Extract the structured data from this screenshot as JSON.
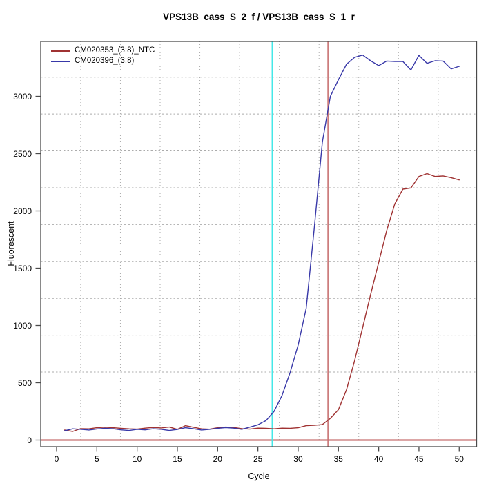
{
  "title": "VPS13B_cass_S_2_f / VPS13B_cass_S_1_r",
  "axes": {
    "xlabel": "Cycle",
    "ylabel": "Fluorescent",
    "x_ticks": [
      0,
      5,
      10,
      15,
      20,
      25,
      30,
      35,
      40,
      45,
      50
    ],
    "y_ticks": [
      0,
      500,
      1000,
      1500,
      2000,
      2500,
      3000
    ]
  },
  "legend": {
    "items": [
      {
        "label": "CM020353_(3:8)_NTC",
        "color": "#A03232"
      },
      {
        "label": "CM020396_(3:8)",
        "color": "#3838A8"
      }
    ]
  },
  "colors": {
    "ntc_series": "#A03232",
    "sample_series": "#3838A8",
    "cyan_marker": "#45E8E8",
    "red_marker": "#C87272",
    "grid": "#ABABAB",
    "box": "#4A4A4A"
  },
  "chart_data": {
    "type": "line",
    "title": "VPS13B_cass_S_2_f / VPS13B_cass_S_1_r",
    "xlabel": "Cycle",
    "ylabel": "Fluorescent",
    "xlim": [
      -2,
      52
    ],
    "ylim": [
      -60,
      3480
    ],
    "grid": "dotted",
    "legend_position": "top-left",
    "x": [
      1,
      2,
      3,
      4,
      5,
      6,
      7,
      8,
      9,
      10,
      11,
      12,
      13,
      14,
      15,
      16,
      17,
      18,
      19,
      20,
      21,
      22,
      23,
      24,
      25,
      26,
      27,
      28,
      29,
      30,
      31,
      32,
      33,
      34,
      35,
      36,
      37,
      38,
      39,
      40,
      41,
      42,
      43,
      44,
      45,
      46,
      47,
      48,
      49,
      50
    ],
    "series": [
      {
        "name": "CM020353_(3:8)_NTC",
        "color": "#A03232",
        "values": [
          88,
          75,
          100,
          98,
          108,
          112,
          108,
          103,
          98,
          96,
          104,
          110,
          106,
          114,
          94,
          126,
          112,
          98,
          95,
          108,
          114,
          110,
          100,
          96,
          104,
          103,
          98,
          104,
          103,
          108,
          126,
          129,
          135,
          190,
          265,
          440,
          690,
          980,
          1270,
          1550,
          1830,
          2060,
          2190,
          2200,
          2300,
          2325,
          2300,
          2305,
          2290,
          2270
        ]
      },
      {
        "name": "CM020396_(3:8)",
        "color": "#3838A8",
        "values": [
          82,
          98,
          94,
          88,
          97,
          103,
          99,
          89,
          84,
          94,
          89,
          99,
          94,
          84,
          93,
          108,
          99,
          88,
          94,
          103,
          109,
          104,
          94,
          113,
          133,
          170,
          250,
          390,
          590,
          830,
          1150,
          1850,
          2600,
          3000,
          3145,
          3280,
          3340,
          3360,
          3310,
          3268,
          3308,
          3304,
          3304,
          3230,
          3358,
          3288,
          3310,
          3308,
          3240,
          3262
        ]
      }
    ],
    "markers": {
      "vlines": [
        {
          "x": 26.8,
          "color": "#45E8E8",
          "name": "threshold-cycle-marker-cyan"
        },
        {
          "x": 33.7,
          "color": "#C87272",
          "name": "threshold-cycle-marker-red"
        }
      ],
      "hlines": [
        {
          "y": 0,
          "color": "#C87272",
          "name": "zero-baseline-line"
        }
      ]
    }
  }
}
